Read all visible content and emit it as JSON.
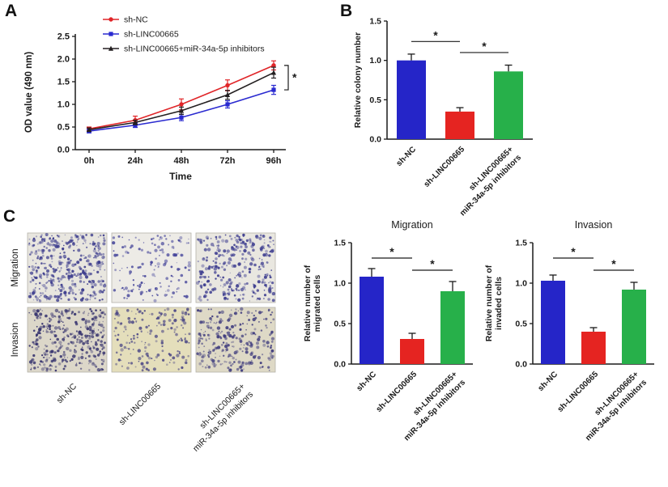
{
  "figure": {
    "panels": {
      "a": "A",
      "b": "B",
      "c": "C"
    }
  },
  "colors": {
    "blue": "#2525c8",
    "red": "#e52421",
    "green": "#27b04a",
    "black": "#231f20",
    "axis": "#1a1a1a"
  },
  "chart_data": [
    {
      "id": "cck8",
      "type": "line",
      "xlabel": "Time",
      "ylabel": "OD value (490 nm)",
      "x": [
        "0h",
        "24h",
        "48h",
        "72h",
        "96h"
      ],
      "ylim": [
        0,
        2.5
      ],
      "yticks": [
        0,
        0.5,
        1.0,
        1.5,
        2.0,
        2.5
      ],
      "legend_position": "top-left-inside",
      "series": [
        {
          "name": "sh-NC",
          "color": "#e02528",
          "marker": "circle",
          "values": [
            0.46,
            0.65,
            1.0,
            1.42,
            1.86
          ],
          "errors": [
            0.04,
            0.09,
            0.12,
            0.12,
            0.1
          ]
        },
        {
          "name": "sh-LINC00665",
          "color": "#2a2ad0",
          "marker": "square",
          "values": [
            0.41,
            0.54,
            0.71,
            1.0,
            1.32
          ],
          "errors": [
            0.04,
            0.05,
            0.07,
            0.08,
            0.1
          ]
        },
        {
          "name": "sh-LINC00665+miR-34a-5p inhibitors",
          "color": "#231f20",
          "marker": "triangle",
          "values": [
            0.44,
            0.6,
            0.86,
            1.21,
            1.7
          ],
          "errors": [
            0.04,
            0.05,
            0.08,
            0.1,
            0.12
          ]
        }
      ],
      "significance": {
        "label": "*",
        "between": [
          "sh-NC",
          "sh-LINC00665"
        ],
        "at_x": "96h"
      }
    },
    {
      "id": "colony",
      "type": "bar",
      "title": "",
      "ylabel": [
        "Relative colony number"
      ],
      "ylim": [
        0,
        1.5
      ],
      "yticks": [
        0,
        0.5,
        1.0,
        1.5
      ],
      "categories": [
        [
          "sh-NC"
        ],
        [
          "sh-LINC00665"
        ],
        [
          "sh-LINC00665+",
          "miR-34a-5p inhibitors"
        ]
      ],
      "values": [
        1.0,
        0.35,
        0.86
      ],
      "errors": [
        0.08,
        0.05,
        0.08
      ],
      "colors": [
        "#2525c8",
        "#e52421",
        "#27b04a"
      ],
      "significance": [
        {
          "from": 0,
          "to": 1,
          "label": "*",
          "y": 1.24
        },
        {
          "from": 1,
          "to": 2,
          "label": "*",
          "y": 1.1
        }
      ]
    },
    {
      "id": "migration",
      "type": "bar",
      "title": "Migration",
      "ylabel": [
        "Relative number of",
        "migrated cells"
      ],
      "ylim": [
        0,
        1.5
      ],
      "yticks": [
        0,
        0.5,
        1.0,
        1.5
      ],
      "categories": [
        [
          "sh-NC"
        ],
        [
          "sh-LINC00665"
        ],
        [
          "sh-LINC00665+",
          "miR-34a-5p inhibitors"
        ]
      ],
      "values": [
        1.08,
        0.31,
        0.9
      ],
      "errors": [
        0.1,
        0.07,
        0.12
      ],
      "colors": [
        "#2525c8",
        "#e52421",
        "#27b04a"
      ],
      "significance": [
        {
          "from": 0,
          "to": 1,
          "label": "*",
          "y": 1.31
        },
        {
          "from": 1,
          "to": 2,
          "label": "*",
          "y": 1.16
        }
      ]
    },
    {
      "id": "invasion",
      "type": "bar",
      "title": "Invasion",
      "ylabel": [
        "Relative number of",
        "invaded cells"
      ],
      "ylim": [
        0,
        1.5
      ],
      "yticks": [
        0,
        0.5,
        1.0,
        1.5
      ],
      "categories": [
        [
          "sh-NC"
        ],
        [
          "sh-LINC00665"
        ],
        [
          "sh-LINC00665+",
          "miR-34a-5p inhibitors"
        ]
      ],
      "values": [
        1.03,
        0.4,
        0.92
      ],
      "errors": [
        0.07,
        0.05,
        0.09
      ],
      "colors": [
        "#2525c8",
        "#e52421",
        "#27b04a"
      ],
      "significance": [
        {
          "from": 0,
          "to": 1,
          "label": "*",
          "y": 1.31
        },
        {
          "from": 1,
          "to": 2,
          "label": "*",
          "y": 1.16
        }
      ]
    }
  ],
  "panel_c": {
    "row_labels": [
      "Migration",
      "Invasion"
    ],
    "column_labels": [
      [
        "sh-NC"
      ],
      [
        "sh-LINC00665"
      ],
      [
        "sh-LINC00665+",
        "miR-34a-5p inhibitors"
      ]
    ],
    "images": [
      {
        "row": "Migration",
        "col": "sh-NC",
        "bg": "#e8e6df",
        "dot_color": "#3e3e8e",
        "count": 390,
        "seed": 11
      },
      {
        "row": "Migration",
        "col": "sh-LINC00665",
        "bg": "#edebe6",
        "dot_color": "#44449a",
        "count": 150,
        "seed": 22
      },
      {
        "row": "Migration",
        "col": "sh-LINC00665+miR-34a-5p inhibitors",
        "bg": "#e9e7e0",
        "dot_color": "#3f3f90",
        "count": 300,
        "seed": 33
      },
      {
        "row": "Invasion",
        "col": "sh-NC",
        "bg": "#dcd7c9",
        "dot_color": "#37346f",
        "count": 350,
        "seed": 44
      },
      {
        "row": "Invasion",
        "col": "sh-LINC00665",
        "bg": "#e4debb",
        "dot_color": "#4a4685",
        "count": 175,
        "seed": 55
      },
      {
        "row": "Invasion",
        "col": "sh-LINC00665+miR-34a-5p inhibitors",
        "bg": "#ded9c6",
        "dot_color": "#403d7e",
        "count": 265,
        "seed": 66
      }
    ]
  }
}
